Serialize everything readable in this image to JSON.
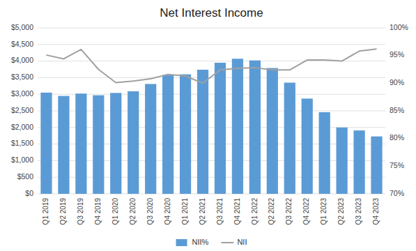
{
  "chart_data": {
    "type": "bar",
    "title": "Net Interest Income",
    "categories": [
      "Q1 2019",
      "Q2 2019",
      "Q3 2019",
      "Q4 2019",
      "Q1 2020",
      "Q2 2020",
      "Q3 2020",
      "Q4 2020",
      "Q1 2021",
      "Q2 2021",
      "Q3 2021",
      "Q4 2021",
      "Q1 2022",
      "Q2 2022",
      "Q3 2022",
      "Q4 2022",
      "Q1 2023",
      "Q2 2023",
      "Q3 2023",
      "Q4 2023"
    ],
    "series": [
      {
        "name": "NII%",
        "type": "bar",
        "color": "#5B9BD5",
        "values": [
          3050,
          2950,
          3020,
          2970,
          3040,
          3090,
          3310,
          3580,
          3600,
          3740,
          3950,
          4070,
          4020,
          3790,
          3350,
          2870,
          2460,
          2000,
          1910,
          1730
        ]
      },
      {
        "name": "NII",
        "type": "line",
        "color": "#A0A0A0",
        "axis": "y2",
        "values": [
          0.951,
          0.944,
          0.961,
          0.925,
          0.901,
          0.904,
          0.908,
          0.916,
          0.913,
          0.9,
          0.924,
          0.927,
          0.928,
          0.924,
          0.924,
          0.942,
          0.942,
          0.94,
          0.958,
          0.962
        ]
      }
    ],
    "ylim": [
      0,
      5000
    ],
    "yticks": [
      {
        "value": 0,
        "label": "$0"
      },
      {
        "value": 500,
        "label": "$500"
      },
      {
        "value": 1000,
        "label": "$1,000"
      },
      {
        "value": 1500,
        "label": "$1,500"
      },
      {
        "value": 2000,
        "label": "$2,000"
      },
      {
        "value": 2500,
        "label": "$2,500"
      },
      {
        "value": 3000,
        "label": "$3,000"
      },
      {
        "value": 3500,
        "label": "$3,500"
      },
      {
        "value": 4000,
        "label": "$4,000"
      },
      {
        "value": 4500,
        "label": "$4,500"
      },
      {
        "value": 5000,
        "label": "$5,000"
      }
    ],
    "y2lim": [
      0.7,
      1.0
    ],
    "y2ticks": [
      {
        "value": 0.7,
        "label": "70%"
      },
      {
        "value": 0.75,
        "label": "75%"
      },
      {
        "value": 0.8,
        "label": "80%"
      },
      {
        "value": 0.85,
        "label": "85%"
      },
      {
        "value": 0.9,
        "label": "90%"
      },
      {
        "value": 0.95,
        "label": "95%"
      },
      {
        "value": 1.0,
        "label": "100%"
      }
    ],
    "grid": true,
    "legend": "bottom"
  }
}
